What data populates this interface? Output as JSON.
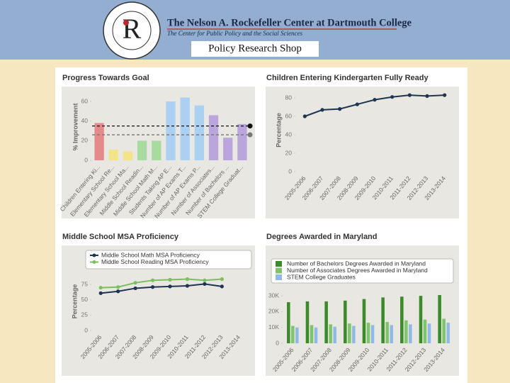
{
  "header": {
    "title": "The Nelson A. Rockefeller Center at Dartmouth College",
    "subtitle": "The Center for Public Policy and the Social Sciences",
    "logo_letter": "R",
    "page_title": "Policy Research Shop"
  },
  "chart_data": [
    {
      "type": "bar",
      "title": "Progress Towards Goal",
      "ylabel": "% Improvement",
      "categories": [
        "Children Entering Ki...",
        "Elementary School Re...",
        "Elementary School Ma...",
        "Middle School Readin...",
        "Middle School Math M...",
        "Students Taking AP E...",
        "Number of AP Exams T...",
        "Number of AP Exams P...",
        "Number of Associates...",
        "Number of Bachelors ...",
        "STEM College Graduat..."
      ],
      "values": [
        38,
        11,
        9,
        20,
        20,
        60,
        64,
        56,
        46,
        23,
        37
      ],
      "colors": [
        "#e58a8a",
        "#f3e48a",
        "#f3e48a",
        "#a9dba0",
        "#a9dba0",
        "#acd0f2",
        "#acd0f2",
        "#acd0f2",
        "#bba6dc",
        "#bba6dc",
        "#bba6dc"
      ],
      "reference_lines": [
        {
          "value": 35,
          "color": "#111111"
        },
        {
          "value": 26,
          "color": "#777777"
        }
      ],
      "ylim": [
        0,
        68
      ],
      "yticks": [
        0,
        20,
        40,
        60
      ]
    },
    {
      "type": "line",
      "title": "Children Entering Kindergarten Fully Ready",
      "ylabel": "Percentage",
      "categories": [
        "2005-2006",
        "2006-2007",
        "2007-2008",
        "2008-2009",
        "2009-2010",
        "2010-2011",
        "2011-2012",
        "2012-2013",
        "2013-2014"
      ],
      "series": [
        {
          "color": "#1f3552",
          "values": [
            60,
            67,
            68,
            73,
            78,
            81,
            83,
            82,
            83
          ]
        }
      ],
      "ylim": [
        0,
        90
      ],
      "yticks": [
        0,
        20,
        40,
        60,
        80
      ]
    },
    {
      "type": "line",
      "title": "Middle School MSA Proficiency",
      "ylabel": "Percentage",
      "legend": "top",
      "categories": [
        "2005-2006",
        "2006-2007",
        "2007-2008",
        "2008-2009",
        "2009-2010",
        "2010-2011",
        "2011-2012",
        "2012-2013",
        "2013-2014"
      ],
      "series": [
        {
          "name": "Middle School Math MSA Proficiency",
          "color": "#1f3552",
          "values": [
            61,
            64,
            69,
            71,
            72,
            73,
            76,
            72,
            null
          ]
        },
        {
          "name": "Middle School Reading MSA Proficiency",
          "color": "#7cbf5e",
          "values": [
            70,
            71,
            78,
            82,
            83,
            84,
            82,
            84,
            null
          ]
        }
      ],
      "ylim": [
        0,
        95
      ],
      "yticks": [
        0,
        25,
        50,
        75
      ]
    },
    {
      "type": "bar",
      "title": "Degrees Awarded in Maryland",
      "legend": "top",
      "categories": [
        "2005-2006",
        "2006-2007",
        "2007-2008",
        "2008-2009",
        "2009-2010",
        "2010-2011",
        "2011-2012",
        "2012-2013",
        "2013-2014"
      ],
      "series": [
        {
          "name": "Number of Bachelors Degrees Awarded in Maryland",
          "color": "#3b8a2c",
          "values": [
            26000,
            26500,
            26500,
            27000,
            28000,
            29000,
            29500,
            30000,
            30500
          ]
        },
        {
          "name": "Number of Associates Degrees Awarded in Maryland",
          "color": "#7fc46b",
          "values": [
            11000,
            11500,
            12000,
            12500,
            13000,
            13500,
            14500,
            15000,
            15500
          ]
        },
        {
          "name": "STEM College Graduates",
          "color": "#92b9e6",
          "values": [
            10000,
            10000,
            10500,
            11000,
            11500,
            11500,
            12000,
            12500,
            13000
          ]
        }
      ],
      "ylim": [
        0,
        35000
      ],
      "yticks": [
        0,
        {
          "value": 10000,
          "label": "10K"
        },
        {
          "value": 20000,
          "label": "20K"
        },
        {
          "value": 30000,
          "label": "30K"
        }
      ]
    }
  ]
}
